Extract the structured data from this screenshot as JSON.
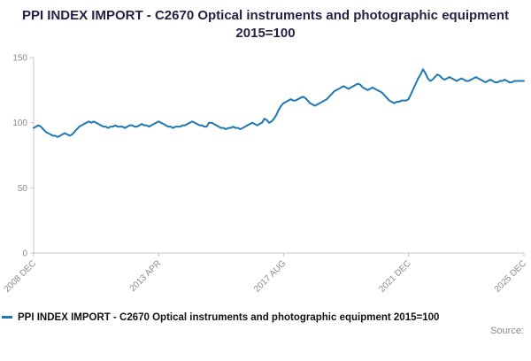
{
  "title": "PPI INDEX IMPORT - C2670 Optical instruments and photographic equipment 2015=100",
  "legend": {
    "label": "PPI INDEX IMPORT - C2670 Optical instruments and photographic equipment 2015=100",
    "color": "#1f77b4"
  },
  "source_label": "Source:",
  "chart_data": {
    "type": "line",
    "title": "PPI INDEX IMPORT - C2670 Optical instruments and photographic equipment 2015=100",
    "xlabel": "",
    "ylabel": "",
    "ylim": [
      0,
      150
    ],
    "y_ticks": [
      0,
      50,
      100,
      150
    ],
    "x_tick_labels": [
      "2008 DEC",
      "2013 APR",
      "2017 AUG",
      "2021 DEC",
      "2025 DEC"
    ],
    "x_tick_positions": [
      0,
      52,
      104,
      156,
      204
    ],
    "x_start": "2008 DEC",
    "x_frequency": "monthly",
    "line_color": "#1f77b4",
    "grid": false,
    "legend_position": "bottom-left",
    "values": [
      96,
      97,
      98,
      97,
      95,
      93,
      92,
      91,
      90,
      90,
      89,
      90,
      91,
      92,
      91,
      90,
      91,
      93,
      95,
      97,
      98,
      99,
      100,
      101,
      100,
      101,
      100,
      99,
      98,
      97,
      97,
      96,
      97,
      97,
      98,
      97,
      97,
      97,
      96,
      97,
      98,
      98,
      97,
      97,
      98,
      99,
      98,
      98,
      97,
      98,
      99,
      100,
      101,
      100,
      99,
      98,
      97,
      97,
      96,
      97,
      97,
      97,
      98,
      98,
      99,
      100,
      101,
      100,
      99,
      98,
      98,
      97,
      97,
      100,
      100,
      99,
      98,
      97,
      96,
      96,
      95,
      96,
      96,
      97,
      96,
      96,
      95,
      96,
      97,
      98,
      99,
      100,
      99,
      98,
      99,
      100,
      103,
      102,
      100,
      101,
      103,
      106,
      110,
      113,
      115,
      116,
      117,
      118,
      117,
      117,
      118,
      119,
      120,
      119,
      117,
      115,
      114,
      113,
      114,
      115,
      116,
      117,
      118,
      120,
      122,
      124,
      125,
      126,
      127,
      128,
      127,
      126,
      127,
      128,
      129,
      130,
      129,
      127,
      126,
      125,
      126,
      127,
      126,
      125,
      124,
      123,
      121,
      119,
      117,
      116,
      115,
      116,
      116,
      117,
      117,
      117,
      118,
      122,
      126,
      130,
      134,
      137,
      141,
      138,
      134,
      132,
      133,
      135,
      137,
      136,
      134,
      133,
      134,
      135,
      134,
      133,
      132,
      133,
      134,
      133,
      132,
      132,
      133,
      134,
      135,
      134,
      133,
      132,
      131,
      132,
      133,
      132,
      131,
      131,
      132,
      132,
      133,
      132,
      131,
      131,
      132,
      132,
      132,
      132,
      132
    ]
  }
}
